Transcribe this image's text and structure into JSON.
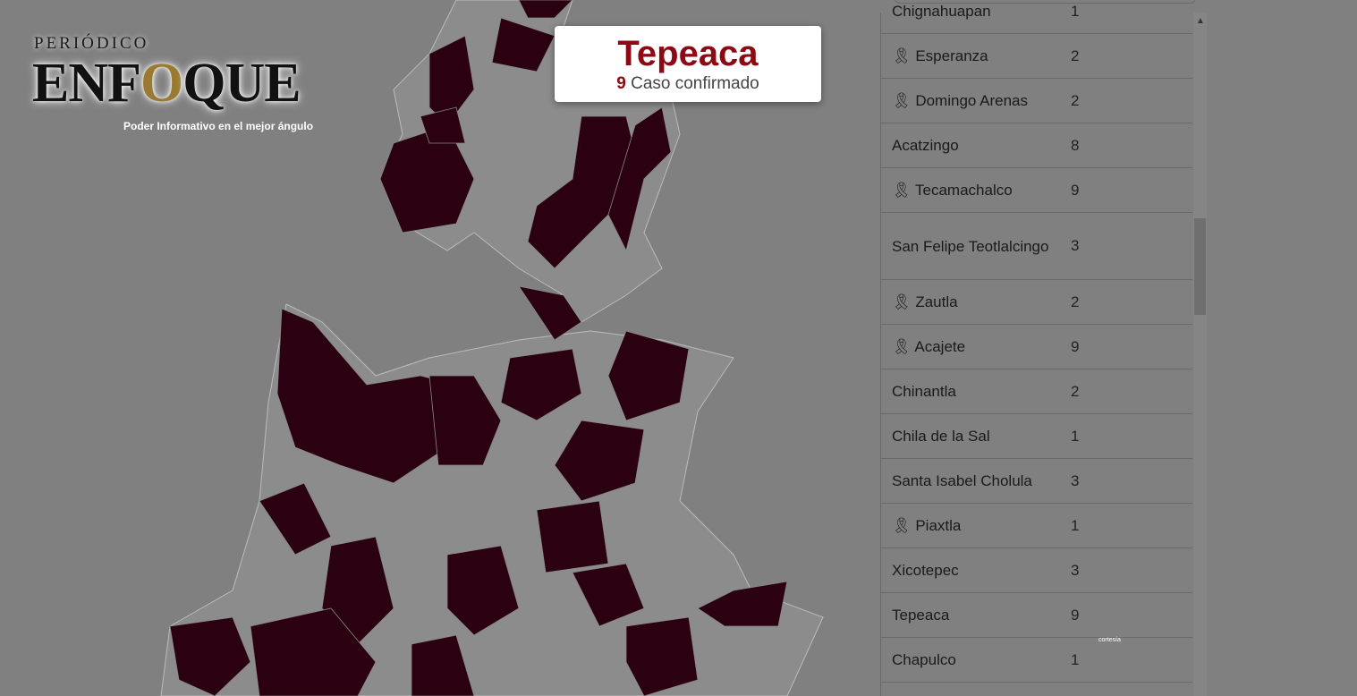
{
  "logo": {
    "top": "PERIÓDICO",
    "main_a": "ENF",
    "main_o": "O",
    "main_b": "QUE",
    "tagline": "Poder Informativo en el mejor ángulo"
  },
  "tooltip": {
    "name": "Tepeaca",
    "count": "9",
    "label": "Caso confirmado"
  },
  "colors": {
    "affected": "#2b0010",
    "unaffected": "#8c8c8c",
    "accent": "#8b0a14"
  },
  "table": {
    "rows": [
      {
        "name": "Chignahuapan",
        "value": "1",
        "ribbon": false
      },
      {
        "name": "Esperanza",
        "value": "2",
        "ribbon": true
      },
      {
        "name": "Domingo Arenas",
        "value": "2",
        "ribbon": true
      },
      {
        "name": "Acatzingo",
        "value": "8",
        "ribbon": false
      },
      {
        "name": "Tecamachalco",
        "value": "9",
        "ribbon": true
      },
      {
        "name": "San Felipe Teotlalcingo",
        "value": "3",
        "ribbon": false
      },
      {
        "name": "Zautla",
        "value": "2",
        "ribbon": true
      },
      {
        "name": "Acajete",
        "value": "9",
        "ribbon": true
      },
      {
        "name": "Chinantla",
        "value": "2",
        "ribbon": false
      },
      {
        "name": "Chila de la Sal",
        "value": "1",
        "ribbon": false
      },
      {
        "name": "Santa Isabel Cholula",
        "value": "3",
        "ribbon": false
      },
      {
        "name": "Piaxtla",
        "value": "1",
        "ribbon": true
      },
      {
        "name": "Xicotepec",
        "value": "3",
        "ribbon": false
      },
      {
        "name": "Tepeaca",
        "value": "9",
        "ribbon": false
      },
      {
        "name": "Chapulco",
        "value": "1",
        "ribbon": false
      }
    ]
  },
  "courtesy": "cortesía"
}
